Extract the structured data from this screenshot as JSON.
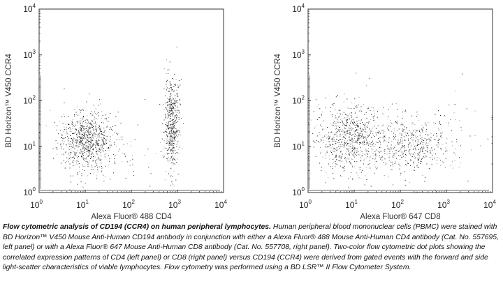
{
  "chart_data": [
    {
      "type": "scatter",
      "xlabel": "Alexa Fluor® 488 CD4",
      "ylabel": "BD Horizon™ V450 CCR4",
      "xscale": "log",
      "yscale": "log",
      "xlim": [
        1,
        10000
      ],
      "ylim": [
        1,
        10000
      ],
      "xticks": [
        "10^0",
        "10^1",
        "10^2",
        "10^3",
        "10^4"
      ],
      "yticks": [
        "10^0",
        "10^1",
        "10^2",
        "10^3",
        "10^4"
      ],
      "grid": false,
      "populations": [
        {
          "label": "CD4- cluster",
          "x_center": 10,
          "y_center": 14,
          "x_spread_decades": 0.3,
          "y_spread_decades": 0.32,
          "count": 800
        },
        {
          "label": "CD4+ cluster",
          "x_center": 750,
          "y_center": 30,
          "x_spread_decades": 0.08,
          "y_spread_decades": 0.5,
          "count": 550
        },
        {
          "label": "scattered events",
          "x_center": 40,
          "y_center": 8,
          "x_spread_decades": 0.7,
          "y_spread_decades": 0.4,
          "count": 60
        }
      ]
    },
    {
      "type": "scatter",
      "xlabel": "Alexa Fluor® 647 CD8",
      "ylabel": "BD Horizon™ V450 CCR4",
      "xscale": "log",
      "yscale": "log",
      "xlim": [
        1,
        10000
      ],
      "ylim": [
        1,
        10000
      ],
      "xticks": [
        "10^0",
        "10^1",
        "10^2",
        "10^3",
        "10^4"
      ],
      "yticks": [
        "10^0",
        "10^1",
        "10^2",
        "10^3",
        "10^4"
      ],
      "grid": false,
      "populations": [
        {
          "label": "CD8- cluster",
          "x_center": 8,
          "y_center": 15,
          "x_spread_decades": 0.35,
          "y_spread_decades": 0.4,
          "count": 700
        },
        {
          "label": "CD8+ cluster",
          "x_center": 180,
          "y_center": 11,
          "x_spread_decades": 0.45,
          "y_spread_decades": 0.28,
          "count": 450
        },
        {
          "label": "scattered events",
          "x_center": 200,
          "y_center": 15,
          "x_spread_decades": 1.0,
          "y_spread_decades": 0.6,
          "count": 90
        }
      ]
    }
  ],
  "caption": {
    "title": "Flow cytometric analysis of CD194 (CCR4) on human peripheral lymphocytes.",
    "body": "Human peripheral blood mononuclear cells (PBMC) were stained with BD Horizon™ V450 Mouse Anti-Human CD194 antibody in conjunction with either a Alexa Fluor® 488 Mouse Anti-Human CD4 antibody (Cat. No. 557695, left panel) or with a Alexa Fluor® 647 Mouse Anti-Human CD8 antibody (Cat. No. 557708, right panel). Two-color flow cytometric dot plots showing the correlated expression patterns of CD4 (left panel) or CD8 (right panel) versus CD194 (CCR4) were derived from gated events with the forward and side light-scatter characteristics of viable lymphocytes. Flow cytometry was performed using a BD LSR™ II Flow Cytometer System."
  },
  "colors": {
    "dot_dark": "#111111",
    "dot_grey": "#8a8a8a",
    "frame": "#333333"
  }
}
